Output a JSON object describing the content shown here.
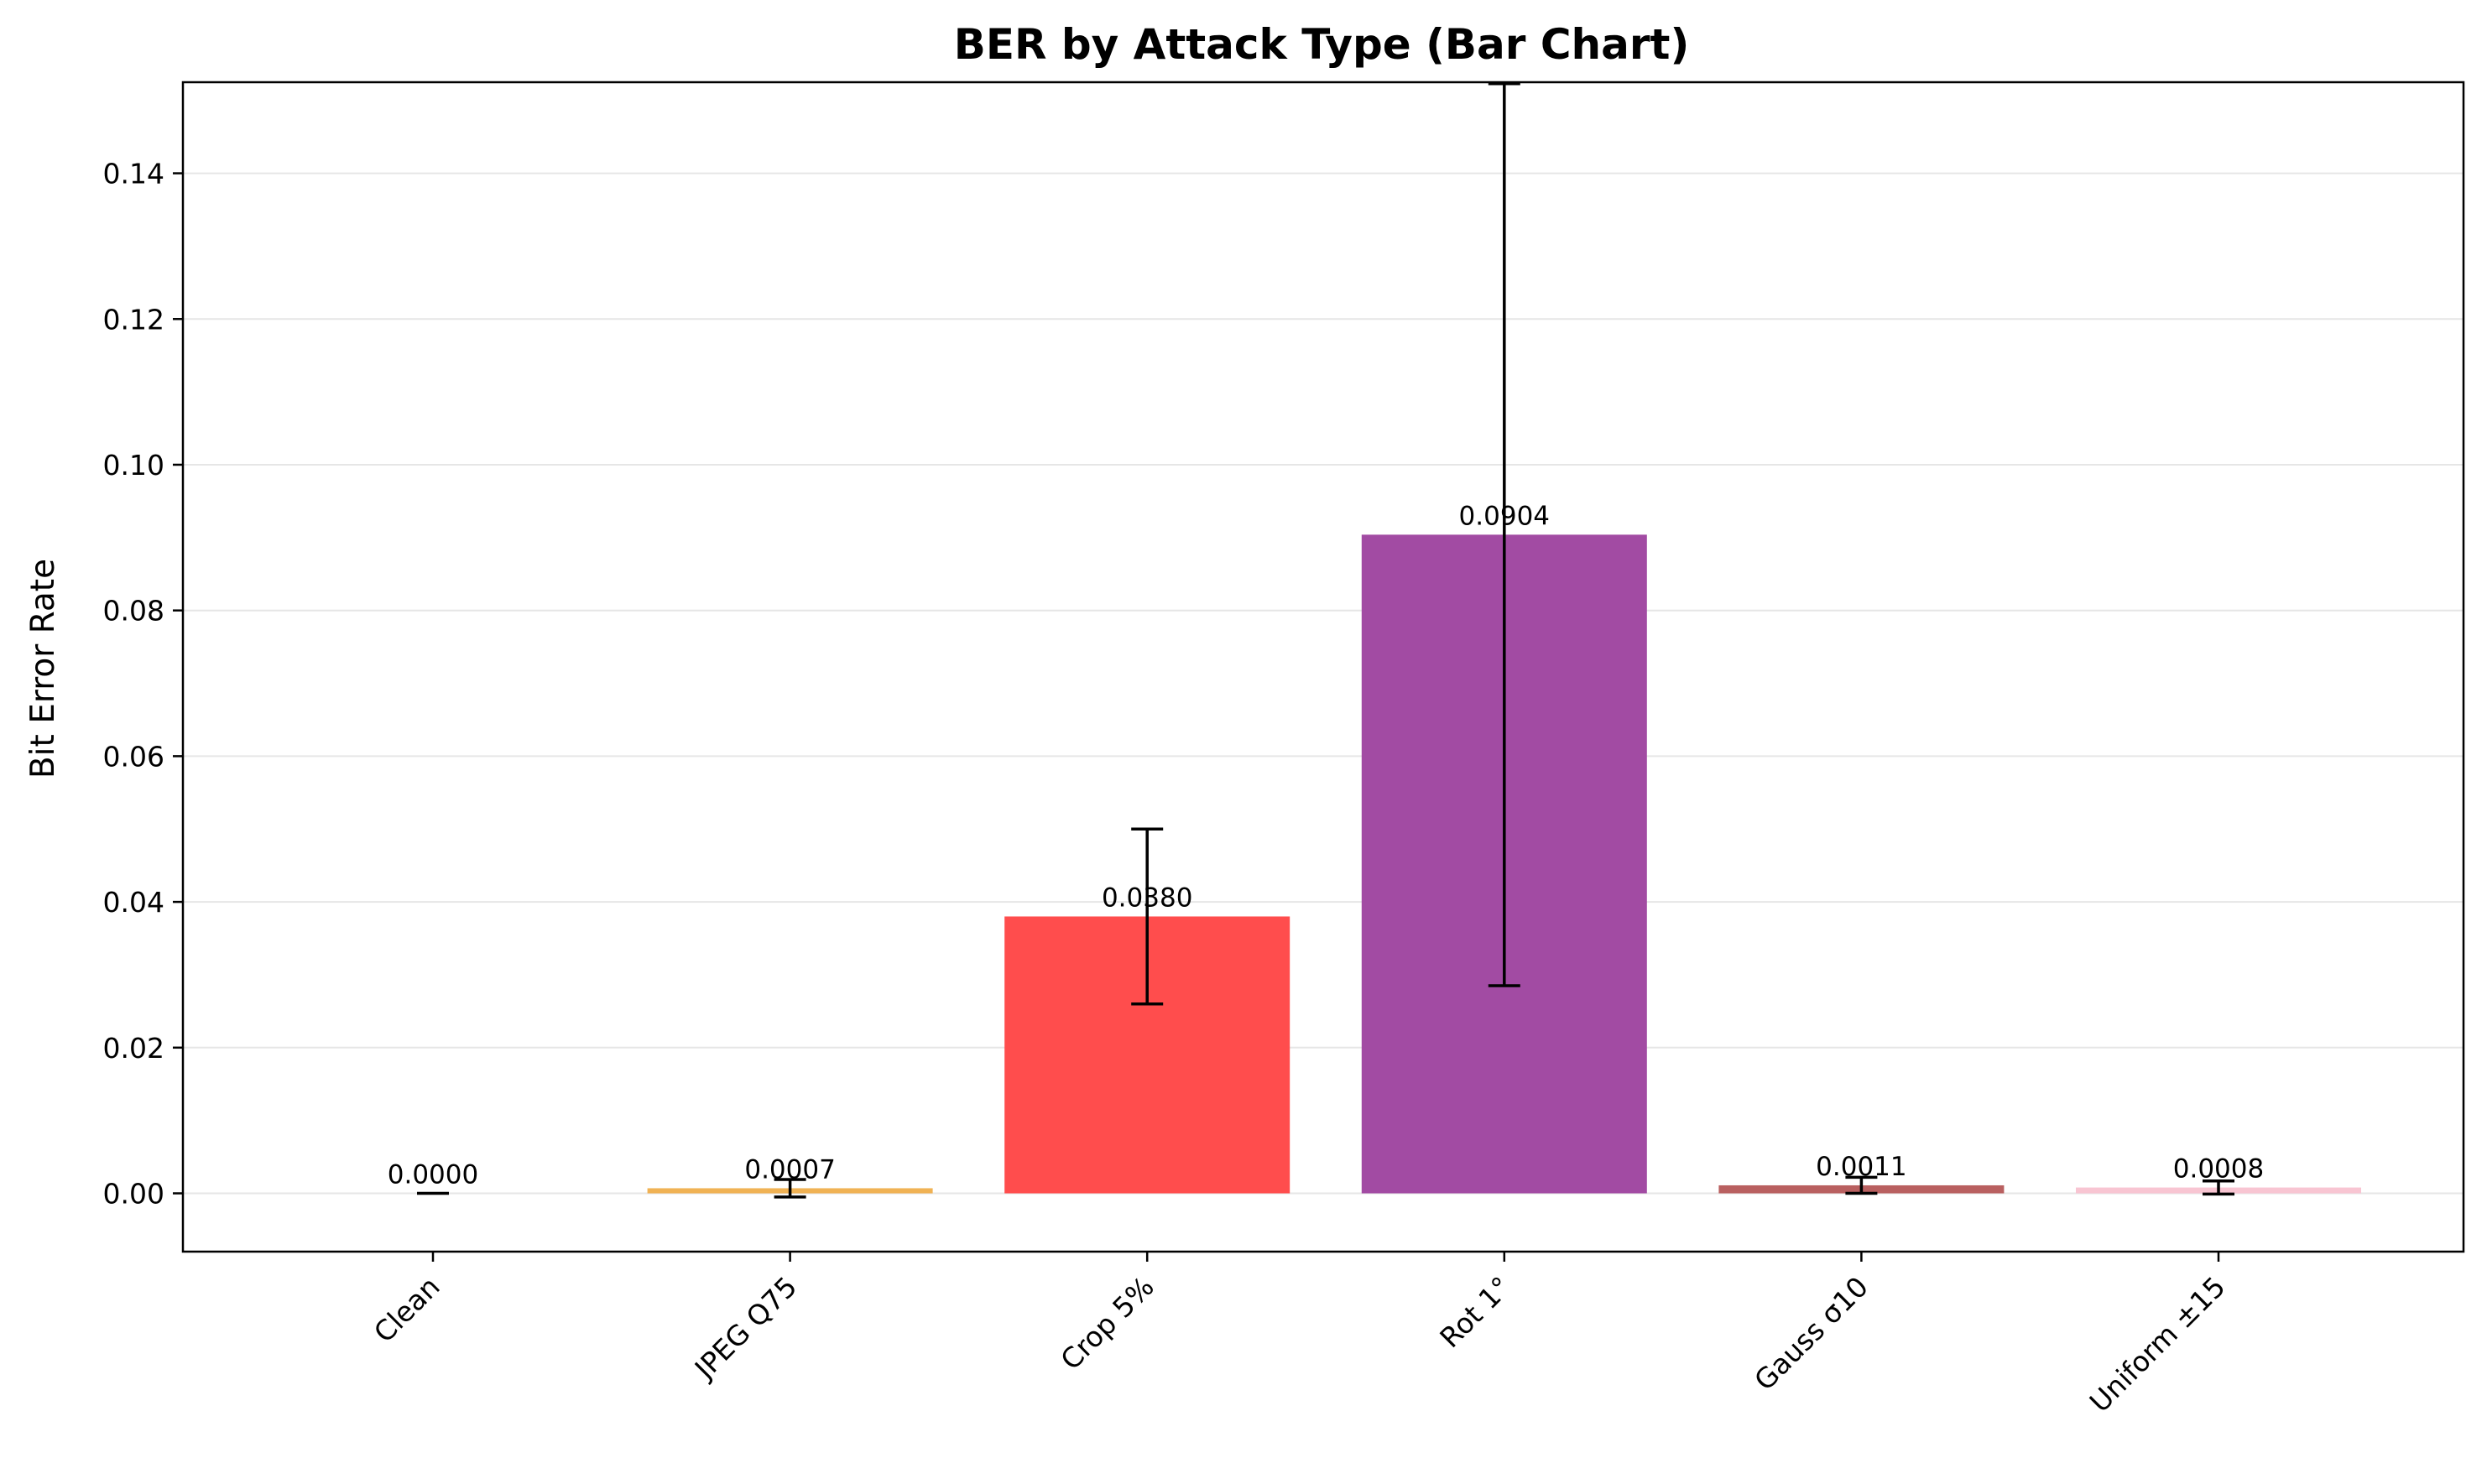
{
  "chart_data": {
    "type": "bar",
    "title": "BER by Attack Type (Bar Chart)",
    "xlabel": "",
    "ylabel": "Bit Error Rate",
    "categories": [
      "Clean",
      "JPEG Q75",
      "Crop 5%",
      "Rot 1°",
      "Gauss σ10",
      "Uniform ±15"
    ],
    "values": [
      0.0,
      0.0007,
      0.038,
      0.0904,
      0.0011,
      0.0008
    ],
    "value_labels": [
      "0.0000",
      "0.0007",
      "0.0380",
      "0.0904",
      "0.0011",
      "0.0008"
    ],
    "errors": [
      0.0,
      0.0012,
      0.012,
      0.0619,
      0.0011,
      0.0009
    ],
    "colors": [
      "#999999",
      "#F0B254",
      "#FF4D4D",
      "#A24BA3",
      "#B96060",
      "#F8C5D2"
    ],
    "ylim": [
      -0.008,
      0.1525
    ],
    "yticks": [
      0.0,
      0.02,
      0.04,
      0.06,
      0.08,
      0.1,
      0.12,
      0.14
    ],
    "ytick_labels": [
      "0.00",
      "0.02",
      "0.04",
      "0.06",
      "0.08",
      "0.10",
      "0.12",
      "0.14"
    ],
    "grid": "y",
    "legend": "none"
  }
}
